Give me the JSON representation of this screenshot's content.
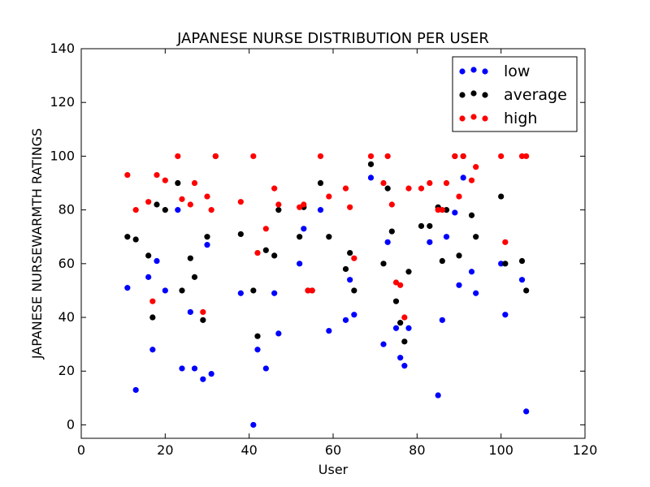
{
  "chart_data": {
    "type": "scatter",
    "title": "JAPANESE NURSE DISTRIBUTION PER USER",
    "xlabel": "User",
    "ylabel": "JAPANESE NURSEWARMTH RATINGS",
    "xlim": [
      0,
      120
    ],
    "ylim": [
      -5,
      140
    ],
    "xticks": [
      0,
      20,
      40,
      60,
      80,
      100,
      120
    ],
    "yticks": [
      0,
      20,
      40,
      60,
      80,
      100,
      120,
      140
    ],
    "grid": false,
    "legend_position": "top-right",
    "series": [
      {
        "name": "low",
        "color": "#0000ff",
        "points": [
          [
            11,
            51
          ],
          [
            13,
            13
          ],
          [
            16,
            55
          ],
          [
            17,
            28
          ],
          [
            18,
            61
          ],
          [
            20,
            50
          ],
          [
            23,
            80
          ],
          [
            24,
            21
          ],
          [
            26,
            42
          ],
          [
            27,
            21
          ],
          [
            29,
            17
          ],
          [
            30,
            67
          ],
          [
            31,
            19
          ],
          [
            38,
            49
          ],
          [
            41,
            0
          ],
          [
            42,
            28
          ],
          [
            44,
            21
          ],
          [
            46,
            49
          ],
          [
            47,
            34
          ],
          [
            52,
            60
          ],
          [
            53,
            73
          ],
          [
            57,
            80
          ],
          [
            59,
            35
          ],
          [
            63,
            39
          ],
          [
            64,
            54
          ],
          [
            65,
            41
          ],
          [
            69,
            92
          ],
          [
            72,
            30
          ],
          [
            73,
            68
          ],
          [
            75,
            36
          ],
          [
            76,
            25
          ],
          [
            77,
            22
          ],
          [
            78,
            36
          ],
          [
            83,
            68
          ],
          [
            85,
            11
          ],
          [
            86,
            39
          ],
          [
            87,
            70
          ],
          [
            89,
            79
          ],
          [
            90,
            52
          ],
          [
            91,
            92
          ],
          [
            93,
            57
          ],
          [
            94,
            49
          ],
          [
            100,
            60
          ],
          [
            101,
            41
          ],
          [
            105,
            54
          ],
          [
            106,
            5
          ]
        ]
      },
      {
        "name": "average",
        "color": "#000000",
        "points": [
          [
            11,
            70
          ],
          [
            13,
            69
          ],
          [
            16,
            63
          ],
          [
            17,
            40
          ],
          [
            18,
            82
          ],
          [
            20,
            80
          ],
          [
            23,
            90
          ],
          [
            24,
            50
          ],
          [
            26,
            62
          ],
          [
            27,
            55
          ],
          [
            29,
            39
          ],
          [
            30,
            70
          ],
          [
            32,
            100
          ],
          [
            38,
            71
          ],
          [
            41,
            50
          ],
          [
            42,
            33
          ],
          [
            44,
            65
          ],
          [
            46,
            63
          ],
          [
            47,
            80
          ],
          [
            52,
            70
          ],
          [
            53,
            81
          ],
          [
            54,
            50
          ],
          [
            55,
            50
          ],
          [
            57,
            90
          ],
          [
            59,
            70
          ],
          [
            63,
            58
          ],
          [
            64,
            64
          ],
          [
            65,
            50
          ],
          [
            69,
            97
          ],
          [
            72,
            60
          ],
          [
            73,
            88
          ],
          [
            74,
            72
          ],
          [
            75,
            46
          ],
          [
            76,
            38
          ],
          [
            77,
            31
          ],
          [
            78,
            57
          ],
          [
            81,
            74
          ],
          [
            83,
            74
          ],
          [
            85,
            81
          ],
          [
            86,
            61
          ],
          [
            87,
            80
          ],
          [
            89,
            100
          ],
          [
            90,
            63
          ],
          [
            91,
            100
          ],
          [
            93,
            78
          ],
          [
            94,
            70
          ],
          [
            100,
            85
          ],
          [
            101,
            60
          ],
          [
            105,
            61
          ],
          [
            106,
            50
          ]
        ]
      },
      {
        "name": "high",
        "color": "#ff0000",
        "points": [
          [
            11,
            93
          ],
          [
            13,
            80
          ],
          [
            16,
            83
          ],
          [
            17,
            46
          ],
          [
            18,
            93
          ],
          [
            20,
            91
          ],
          [
            23,
            100
          ],
          [
            24,
            84
          ],
          [
            26,
            82
          ],
          [
            27,
            90
          ],
          [
            29,
            42
          ],
          [
            30,
            85
          ],
          [
            31,
            80
          ],
          [
            32,
            100
          ],
          [
            38,
            83
          ],
          [
            41,
            100
          ],
          [
            42,
            64
          ],
          [
            44,
            73
          ],
          [
            46,
            88
          ],
          [
            47,
            82
          ],
          [
            52,
            81
          ],
          [
            53,
            82
          ],
          [
            54,
            50
          ],
          [
            55,
            50
          ],
          [
            57,
            100
          ],
          [
            59,
            85
          ],
          [
            63,
            88
          ],
          [
            64,
            81
          ],
          [
            65,
            62
          ],
          [
            69,
            100
          ],
          [
            72,
            90
          ],
          [
            73,
            100
          ],
          [
            74,
            82
          ],
          [
            75,
            53
          ],
          [
            76,
            52
          ],
          [
            77,
            40
          ],
          [
            78,
            88
          ],
          [
            81,
            88
          ],
          [
            83,
            90
          ],
          [
            85,
            80
          ],
          [
            86,
            80
          ],
          [
            87,
            90
          ],
          [
            89,
            100
          ],
          [
            90,
            85
          ],
          [
            91,
            100
          ],
          [
            93,
            91
          ],
          [
            94,
            96
          ],
          [
            100,
            100
          ],
          [
            101,
            68
          ],
          [
            105,
            100
          ],
          [
            106,
            100
          ]
        ]
      }
    ]
  }
}
